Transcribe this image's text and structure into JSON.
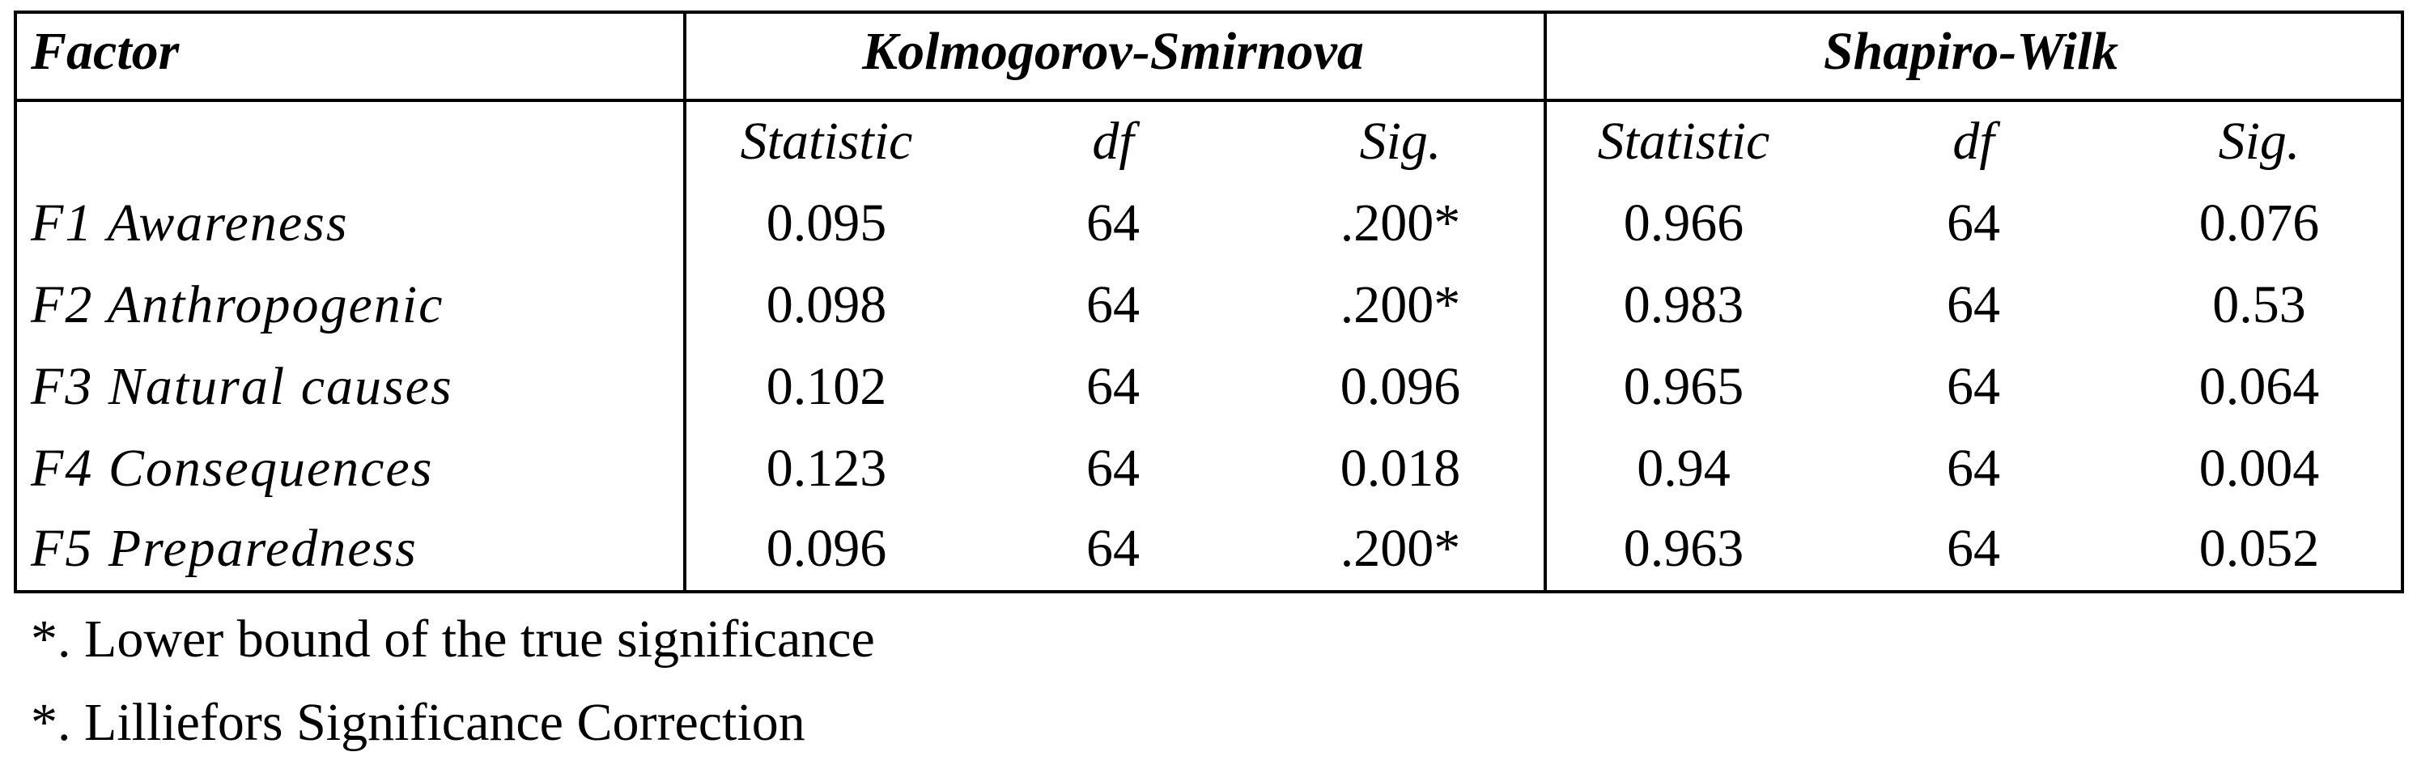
{
  "header": {
    "factor": "Factor",
    "groups": [
      "Kolmogorov-Smirnova",
      "Shapiro-Wilk"
    ],
    "subheaders": [
      "Statistic",
      "df",
      "Sig.",
      "Statistic",
      "df",
      "Sig."
    ]
  },
  "table": {
    "rows": [
      [
        "F1 Awareness",
        0.095,
        64,
        ".200*",
        0.966,
        64,
        0.076
      ],
      [
        "F2 Anthropogenic",
        0.098,
        64,
        ".200*",
        0.983,
        64,
        0.53
      ],
      [
        "F3 Natural causes",
        0.102,
        64,
        0.096,
        0.965,
        64,
        0.064
      ],
      [
        "F4 Consequences",
        0.123,
        64,
        0.018,
        0.94,
        64,
        0.004
      ],
      [
        "F5 Preparedness",
        0.096,
        64,
        ".200*",
        0.963,
        64,
        0.052
      ]
    ]
  },
  "footnotes": [
    "*. Lower bound of the true significance",
    "*. Lilliefors Significance Correction"
  ]
}
